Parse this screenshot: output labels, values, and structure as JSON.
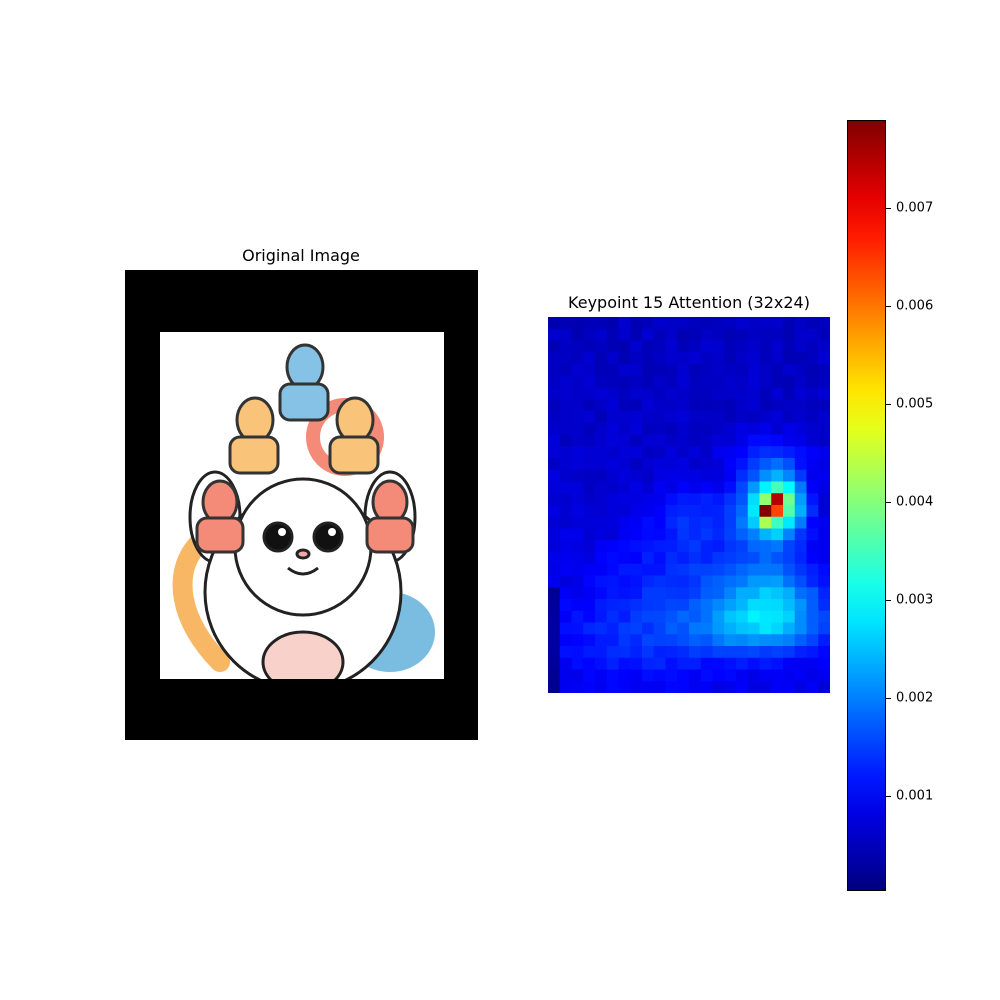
{
  "panels": {
    "original_title": "Original Image",
    "heatmap_title": "Keypoint 15 Attention (32x24)"
  },
  "chart_data": [
    {
      "type": "image",
      "title": "Original Image"
    },
    {
      "type": "heatmap",
      "title": "Keypoint 15 Attention (32x24)",
      "rows": 32,
      "cols": 24,
      "colormap": "jet",
      "vmin": 3e-05,
      "vmax": 0.0079,
      "hotspots": [
        {
          "row": 16.0,
          "col": 18.5,
          "sx": 1.8,
          "sy": 2.0,
          "amp": 0.0026
        },
        {
          "row": 15.0,
          "col": 19.5,
          "sx": 1.2,
          "sy": 1.4,
          "amp": 0.0016
        },
        {
          "row": 11.5,
          "col": 18.5,
          "sx": 2.5,
          "sy": 1.4,
          "amp": 0.0007
        },
        {
          "row": 23.5,
          "col": 18.5,
          "sx": 3.0,
          "sy": 2.2,
          "amp": 0.0013
        },
        {
          "row": 26.0,
          "col": 17.5,
          "sx": 4.0,
          "sy": 1.5,
          "amp": 0.001
        },
        {
          "row": 22.0,
          "col": 12.0,
          "sx": 6.0,
          "sy": 3.0,
          "amp": 0.0006
        },
        {
          "row": 16.5,
          "col": 12.0,
          "sx": 2.5,
          "sy": 2.0,
          "amp": 0.0006
        },
        {
          "row": 27.0,
          "col": 8.0,
          "sx": 6.0,
          "sy": 2.5,
          "amp": 0.0005
        }
      ],
      "peaks": [
        {
          "row": 15,
          "col": 19,
          "value": 0.0075
        },
        {
          "row": 16,
          "col": 18,
          "value": 0.0079
        },
        {
          "row": 16,
          "col": 19,
          "value": 0.0064
        },
        {
          "row": 15,
          "col": 18,
          "value": 0.0041
        },
        {
          "row": 17,
          "col": 18,
          "value": 0.0043
        }
      ],
      "colorbar": {
        "ticks": [
          0.001,
          0.002,
          0.003,
          0.004,
          0.005,
          0.006,
          0.007
        ],
        "tick_labels": [
          "0.001",
          "0.002",
          "0.003",
          "0.004",
          "0.005",
          "0.006",
          "0.007"
        ]
      }
    }
  ]
}
